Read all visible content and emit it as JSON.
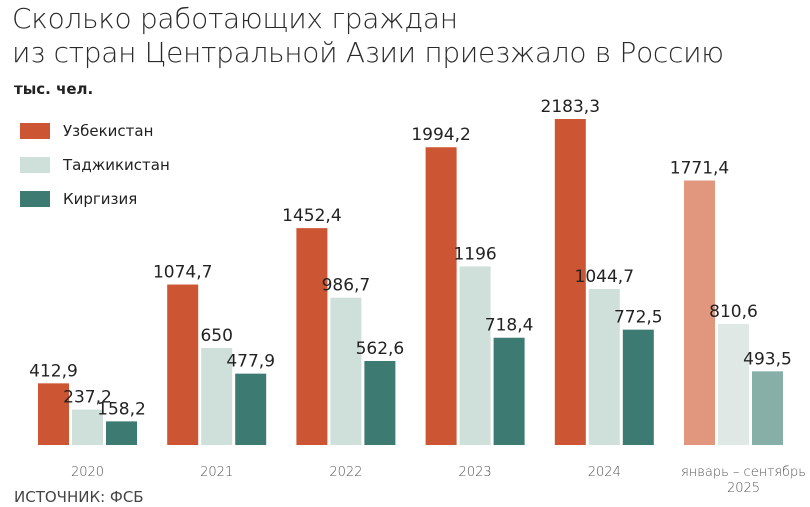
{
  "chart_data": {
    "type": "bar",
    "title": "Сколько работающих граждан из стран Центральной Азии приезжало в Россию",
    "title_lines": [
      "Сколько работающих граждан",
      "из стран Центральной Азии приезжало в Россию"
    ],
    "ylabel": "тыс. чел.",
    "categories": [
      "2020",
      "2021",
      "2022",
      "2023",
      "2024",
      "январь – сентябрь 2025"
    ],
    "category_lines": [
      [
        "2020"
      ],
      [
        "2021"
      ],
      [
        "2022"
      ],
      [
        "2023"
      ],
      [
        "2024"
      ],
      [
        "январь – сентябрь",
        "2025"
      ]
    ],
    "series": [
      {
        "name": "Узбекистан",
        "values": [
          412.9,
          1074.7,
          1452.4,
          1994.2,
          2183.3,
          1771.4
        ],
        "labels": [
          "412,9",
          "1074,7",
          "1452,4",
          "1994,2",
          "2183,3",
          "1771,4"
        ],
        "color": "#cc5533",
        "color_partial": "#e0977e"
      },
      {
        "name": "Таджикистан",
        "values": [
          237.2,
          650,
          986.7,
          1196,
          1044.7,
          810.6
        ],
        "labels": [
          "237,2",
          "650",
          "986,7",
          "1196",
          "1044,7",
          "810,6"
        ],
        "color": "#cfe0db",
        "color_partial": "#dfe8e5"
      },
      {
        "name": "Киргизия",
        "values": [
          158.2,
          477.9,
          562.6,
          718.4,
          772.5,
          493.5
        ],
        "labels": [
          "158,2",
          "477,9",
          "562,6",
          "718,4",
          "772,5",
          "493,5"
        ],
        "color": "#3d7a72",
        "color_partial": "#88aea8"
      }
    ],
    "ylim": [
      0,
      2183.3
    ],
    "grid": false,
    "legend": "top-left",
    "source": "ИСТОЧНИК: ФСБ"
  }
}
